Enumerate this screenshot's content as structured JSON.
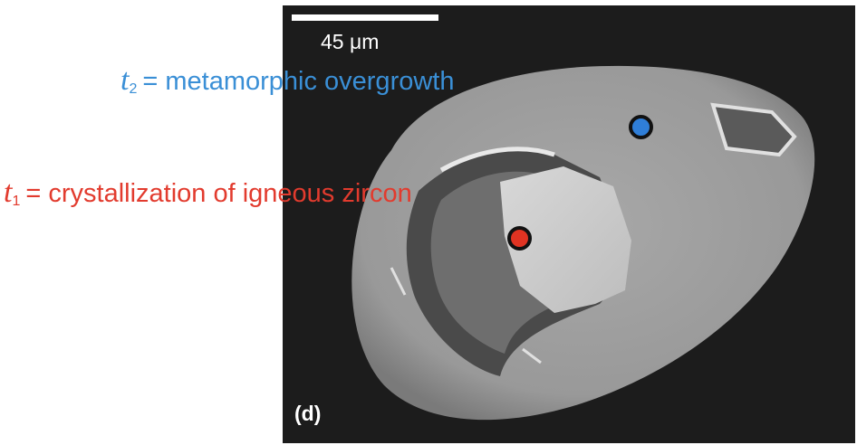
{
  "scale_bar": {
    "label": "45 μm"
  },
  "panel_label": "(d)",
  "annotations": {
    "t2": {
      "variable": "t",
      "subscript": "2",
      "text": "= metamorphic overgrowth",
      "color": "#3a8fd6"
    },
    "t1": {
      "variable": "t",
      "subscript": "1",
      "text": "= crystallization of igneous zircon",
      "color": "#e23b2e"
    }
  },
  "markers": {
    "blue": {
      "color": "#2f7ed8"
    },
    "red": {
      "color": "#e03322"
    }
  }
}
